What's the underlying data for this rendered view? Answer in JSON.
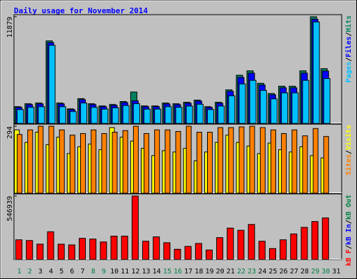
{
  "chart_data": [
    {
      "type": "bar",
      "title": "Daily usage for November 2014",
      "categories": [
        "1",
        "2",
        "3",
        "4",
        "5",
        "6",
        "7",
        "8",
        "9",
        "10",
        "11",
        "12",
        "13",
        "14",
        "15",
        "16",
        "17",
        "18",
        "19",
        "20",
        "21",
        "22",
        "23",
        "24",
        "25",
        "26",
        "27",
        "28",
        "29",
        "30",
        "31"
      ],
      "category_label_colors": [
        "#008040",
        "#008040",
        "#000000",
        "#000000",
        "#000000",
        "#000000",
        "#000000",
        "#008040",
        "#008040",
        "#000000",
        "#000000",
        "#000000",
        "#000000",
        "#000000",
        "#008040",
        "#008040",
        "#000000",
        "#000000",
        "#000000",
        "#000000",
        "#000000",
        "#008040",
        "#008040",
        "#000000",
        "#000000",
        "#000000",
        "#000000",
        "#000000",
        "#008040",
        "#008040",
        "#000000"
      ],
      "legend_separator": "/",
      "ylim": [
        0,
        11879
      ],
      "yticks": [
        11879
      ],
      "series": [
        {
          "name": "Hits",
          "color": "#008060",
          "values": [
            1872,
            2197,
            2278,
            9194,
            2278,
            1627,
            2766,
            2197,
            1953,
            2115,
            2441,
            3499,
            1953,
            1953,
            2278,
            2197,
            2360,
            2604,
            1872,
            2360,
            3743,
            5370,
            5858,
            4475,
            3336,
            4150,
            4150,
            5858,
            11879,
            6102,
            0
          ]
        },
        {
          "name": "Files",
          "color": "#0000ff",
          "values": [
            1790,
            2100,
            2180,
            9000,
            2180,
            1550,
            2650,
            2100,
            1870,
            2020,
            2330,
            2523,
            1870,
            1870,
            2180,
            2100,
            2260,
            2490,
            1790,
            2260,
            3580,
            5126,
            5600,
            4280,
            3190,
            3970,
            3970,
            5600,
            11600,
            5840,
            0
          ]
        },
        {
          "name": "Pages",
          "color": "#00c0ff",
          "values": [
            1550,
            1800,
            1870,
            8700,
            1870,
            1330,
            2280,
            1800,
            1600,
            1740,
            2000,
            2200,
            1600,
            1600,
            1870,
            1800,
            1940,
            2140,
            1550,
            1940,
            3080,
            4400,
            4800,
            3680,
            2740,
            3410,
            3410,
            4800,
            11300,
            5000,
            0
          ]
        }
      ]
    },
    {
      "type": "bar",
      "ylim": [
        0,
        294
      ],
      "yticks": [
        294
      ],
      "series": [
        {
          "name": "Visits",
          "color": "#ffff00",
          "values": [
            278,
            223,
            268,
            213,
            246,
            174,
            204,
            216,
            191,
            288,
            246,
            229,
            197,
            165,
            187,
            181,
            197,
            142,
            181,
            223,
            255,
            223,
            207,
            174,
            220,
            191,
            181,
            204,
            165,
            155,
            0
          ]
        },
        {
          "name": "Sites",
          "color": "#ff8000",
          "values": [
            258,
            278,
            294,
            294,
            278,
            255,
            262,
            278,
            262,
            268,
            275,
            294,
            262,
            278,
            278,
            271,
            294,
            268,
            268,
            288,
            288,
            291,
            294,
            288,
            278,
            262,
            278,
            252,
            284,
            249,
            0
          ]
        }
      ]
    },
    {
      "type": "bar",
      "ylim": [
        0,
        546939
      ],
      "yticks": [
        546939
      ],
      "series": [
        {
          "name": "kB F",
          "color": "#ff0000",
          "values": [
            169742,
            163455,
            132021,
            238898,
            132021,
            125734,
            182316,
            176029,
            150881,
            201175,
            201175,
            546939,
            157168,
            194889,
            144594,
            88015,
            113160,
            138307,
            81728,
            188603,
            270332,
            251466,
            301762,
            157168,
            94302,
            169742,
            220036,
            276618,
            326912,
            358343,
            0
          ]
        },
        {
          "name": "kB In",
          "color": "#0000ff"
        },
        {
          "name": "kB Out",
          "color": "#008040"
        }
      ]
    }
  ]
}
